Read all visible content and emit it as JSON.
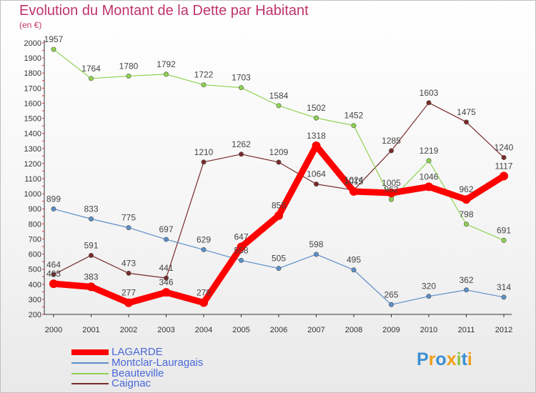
{
  "chart_data": {
    "type": "line",
    "title": "Evolution du Montant de la Dette par Habitant",
    "unit_label": "(en €)",
    "x": [
      "2000",
      "2001",
      "2002",
      "2003",
      "2004",
      "2005",
      "2006",
      "2007",
      "2008",
      "2009",
      "2010",
      "2011",
      "2012"
    ],
    "y_ticks": [
      "200",
      "300",
      "400",
      "500",
      "600",
      "700",
      "800",
      "900",
      "1000",
      "1100",
      "1200",
      "1300",
      "1400",
      "1500",
      "1600",
      "1700",
      "1800",
      "1900",
      "2000"
    ],
    "ylim": [
      200,
      2000
    ],
    "grid": false,
    "legend_position": "bottom-left",
    "series": [
      {
        "name": "LAGARDE",
        "color": "#ff0000",
        "values": [
          403,
          383,
          277,
          346,
          278,
          647,
          855,
          1318,
          1015,
          1005,
          1046,
          962,
          1117
        ],
        "labels": [
          "403",
          "383",
          "277",
          "346",
          "278",
          "647",
          "855",
          "1318",
          "1015",
          "1005",
          "1046",
          "962",
          "1117"
        ]
      },
      {
        "name": "Montclar-Lauragais",
        "color": "#5b8fc8",
        "values": [
          899,
          833,
          775,
          697,
          629,
          558,
          505,
          598,
          495,
          265,
          320,
          362,
          314
        ],
        "labels": [
          "899",
          "833",
          "775",
          "697",
          "629",
          "558",
          "505",
          "598",
          "495",
          "265",
          "320",
          "362",
          "314"
        ]
      },
      {
        "name": "Beauteville",
        "color": "#8fd14f",
        "values": [
          1957,
          1764,
          1780,
          1792,
          1722,
          1703,
          1584,
          1502,
          1452,
          962,
          1219,
          798,
          691
        ],
        "labels": [
          "1957",
          "1764",
          "1780",
          "1792",
          "1722",
          "1703",
          "1584",
          "1502",
          "1452",
          "962",
          "1219",
          "798",
          "691"
        ]
      },
      {
        "name": "Caignac",
        "color": "#7a2a2a",
        "values": [
          464,
          591,
          473,
          441,
          1210,
          1262,
          1209,
          1064,
          1024,
          1285,
          1603,
          1475,
          1240
        ],
        "labels": [
          "464",
          "591",
          "473",
          "441",
          "1210",
          "1262",
          "1209",
          "1064",
          "1024",
          "1285",
          "1603",
          "1475",
          "1240"
        ]
      }
    ]
  },
  "logo": {
    "letters": [
      "P",
      "r",
      "o",
      "x",
      "i",
      "t",
      "i"
    ],
    "colors": [
      "#3b8fd4",
      "#f0a01a",
      "#3b8fd4",
      "#f0a01a",
      "#8cc63f",
      "#3b8fd4",
      "#f0a01a"
    ]
  }
}
